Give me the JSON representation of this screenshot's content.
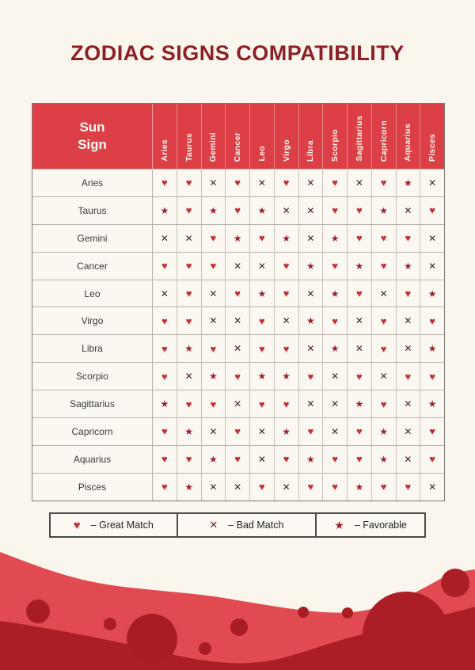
{
  "page": {
    "title": "ZODIAC SIGNS COMPATIBILITY"
  },
  "table": {
    "corner_label": "Sun Sign"
  },
  "symbol_map": {
    "great": {
      "glyph": "♥",
      "name": "heart-icon",
      "meaning": "Great Match"
    },
    "bad": {
      "glyph": "✕",
      "name": "cross-icon",
      "meaning": "Bad Match"
    },
    "favorable": {
      "glyph": "★",
      "name": "star-icon",
      "meaning": "Favorable"
    }
  },
  "legend": {
    "items": [
      {
        "code": "great",
        "label": "– Great Match"
      },
      {
        "code": "bad",
        "label": "– Bad Match"
      },
      {
        "code": "favorable",
        "label": "– Favorable"
      }
    ]
  },
  "colors": {
    "bg": "#FAF6ED",
    "header_red": "#DC4046",
    "title_red": "#8D2026",
    "heart": "#C43038",
    "star": "#9E1F29",
    "cross": "#47242A",
    "wave_light": "#E04A50",
    "wave_dark": "#AC1E25"
  },
  "chart_data": {
    "type": "heatmap",
    "title": "ZODIAC SIGNS COMPATIBILITY",
    "row_header": "Sun Sign",
    "legend": {
      "heart": "Great Match",
      "cross": "Bad Match",
      "star": "Favorable"
    },
    "columns": [
      "Aries",
      "Taurus",
      "Gemini",
      "Cancer",
      "Leo",
      "Virgo",
      "Libra",
      "Scorpio",
      "Sagittarius",
      "Capricorn",
      "Aquarius",
      "Pisces"
    ],
    "rows": [
      {
        "sign": "Aries",
        "values": [
          "great",
          "great",
          "bad",
          "great",
          "bad",
          "great",
          "bad",
          "great",
          "bad",
          "great",
          "favorable",
          "bad"
        ]
      },
      {
        "sign": "Taurus",
        "values": [
          "favorable",
          "great",
          "favorable",
          "great",
          "favorable",
          "bad",
          "bad",
          "great",
          "great",
          "favorable",
          "bad",
          "great"
        ]
      },
      {
        "sign": "Gemini",
        "values": [
          "bad",
          "bad",
          "great",
          "favorable",
          "great",
          "favorable",
          "bad",
          "favorable",
          "great",
          "great",
          "great",
          "bad"
        ]
      },
      {
        "sign": "Cancer",
        "values": [
          "great",
          "great",
          "great",
          "bad",
          "bad",
          "great",
          "favorable",
          "great",
          "favorable",
          "great",
          "favorable",
          "bad"
        ]
      },
      {
        "sign": "Leo",
        "values": [
          "bad",
          "great",
          "bad",
          "great",
          "favorable",
          "great",
          "bad",
          "favorable",
          "great",
          "bad",
          "great",
          "favorable"
        ]
      },
      {
        "sign": "Virgo",
        "values": [
          "great",
          "great",
          "bad",
          "bad",
          "great",
          "bad",
          "favorable",
          "great",
          "bad",
          "great",
          "bad",
          "great"
        ]
      },
      {
        "sign": "Libra",
        "values": [
          "great",
          "favorable",
          "great",
          "bad",
          "great",
          "great",
          "bad",
          "favorable",
          "bad",
          "great",
          "bad",
          "favorable"
        ]
      },
      {
        "sign": "Scorpio",
        "values": [
          "great",
          "bad",
          "favorable",
          "great",
          "favorable",
          "favorable",
          "great",
          "bad",
          "great",
          "bad",
          "great",
          "great"
        ]
      },
      {
        "sign": "Sagittarius",
        "values": [
          "favorable",
          "great",
          "great",
          "bad",
          "great",
          "great",
          "bad",
          "bad",
          "favorable",
          "great",
          "bad",
          "favorable"
        ]
      },
      {
        "sign": "Capricorn",
        "values": [
          "great",
          "favorable",
          "bad",
          "great",
          "bad",
          "favorable",
          "great",
          "bad",
          "great",
          "favorable",
          "bad",
          "great"
        ]
      },
      {
        "sign": "Aquarius",
        "values": [
          "great",
          "great",
          "favorable",
          "great",
          "bad",
          "great",
          "favorable",
          "great",
          "great",
          "favorable",
          "bad",
          "great"
        ]
      },
      {
        "sign": "Pisces",
        "values": [
          "great",
          "favorable",
          "bad",
          "bad",
          "great",
          "bad",
          "great",
          "great",
          "favorable",
          "great",
          "great",
          "bad"
        ]
      }
    ]
  }
}
